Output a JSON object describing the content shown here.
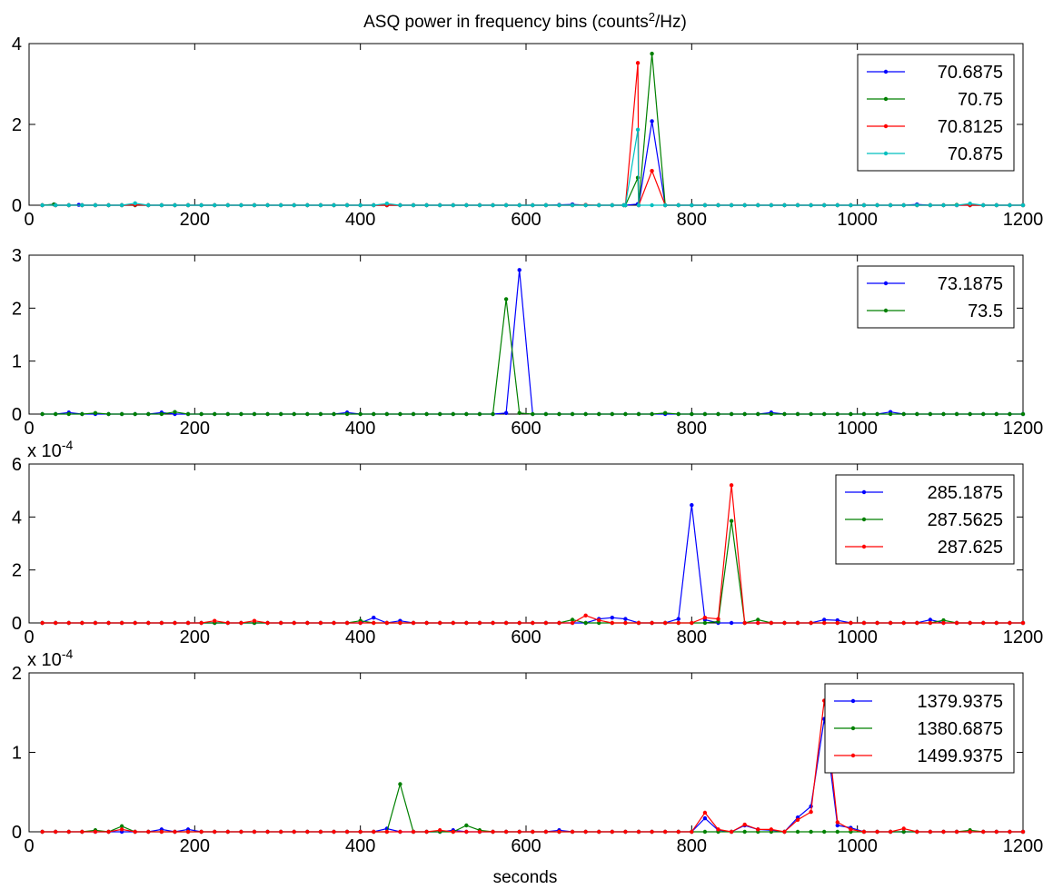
{
  "chart_data": {
    "title": "ASQ power in frequency bins (counts²/Hz)",
    "xlabel": "seconds",
    "panels": [
      {
        "type": "line",
        "xlim": [
          0,
          1200
        ],
        "ylim": [
          0,
          4
        ],
        "xticks": [
          "0",
          "200",
          "400",
          "600",
          "800",
          "1000",
          "1200"
        ],
        "yticks": [
          "0",
          "2",
          "4"
        ],
        "yexponent": "",
        "legend_position": "top-right",
        "series": [
          {
            "name": "70.6875",
            "color": "#0000ff",
            "points": [
              [
                735,
                0.03
              ],
              [
                752,
                2.08
              ],
              [
                768,
                0.0
              ]
            ],
            "baseline_noise": [
              [
                30,
                0.02
              ],
              [
                60,
                0.01
              ],
              [
                640,
                0.01
              ],
              [
                656,
                0.02
              ],
              [
                1072,
                0.02
              ]
            ]
          },
          {
            "name": "70.75",
            "color": "#008000",
            "points": [
              [
                718,
                0.0
              ],
              [
                735,
                0.68
              ],
              [
                752,
                3.75
              ],
              [
                768,
                0.0
              ]
            ],
            "baseline_noise": [
              [
                30,
                0.02
              ],
              [
                1120,
                0.01
              ]
            ]
          },
          {
            "name": "70.8125",
            "color": "#ff0000",
            "points": [
              [
                718,
                0.0
              ],
              [
                735,
                3.52
              ],
              [
                752,
                0.85
              ],
              [
                768,
                0.0
              ]
            ],
            "baseline_noise": [
              [
                128,
                0.01
              ],
              [
                672,
                0.01
              ]
            ]
          },
          {
            "name": "70.875",
            "color": "#00bfbf",
            "points": [
              [
                718,
                0.0
              ],
              [
                735,
                1.87
              ],
              [
                752,
                0.0
              ]
            ],
            "baseline_noise": [
              [
                128,
                0.05
              ],
              [
                432,
                0.04
              ],
              [
                1136,
                0.04
              ]
            ]
          }
        ]
      },
      {
        "type": "line",
        "xlim": [
          0,
          1200
        ],
        "ylim": [
          0,
          3
        ],
        "xticks": [
          "0",
          "200",
          "400",
          "600",
          "800",
          "1000",
          "1200"
        ],
        "yticks": [
          "0",
          "1",
          "2",
          "3"
        ],
        "yexponent": "",
        "legend_position": "top-right",
        "series": [
          {
            "name": "73.1875",
            "color": "#0000ff",
            "points": [
              [
                576,
                0.02
              ],
              [
                592,
                2.72
              ],
              [
                608,
                0.0
              ]
            ],
            "baseline_noise": [
              [
                48,
                0.03
              ],
              [
                160,
                0.03
              ],
              [
                384,
                0.03
              ],
              [
                896,
                0.03
              ],
              [
                1040,
                0.04
              ]
            ]
          },
          {
            "name": "73.5",
            "color": "#008000",
            "points": [
              [
                560,
                0.0
              ],
              [
                576,
                2.17
              ],
              [
                592,
                0.02
              ]
            ],
            "baseline_noise": [
              [
                176,
                0.04
              ],
              [
                80,
                0.02
              ],
              [
                768,
                0.02
              ]
            ]
          }
        ]
      },
      {
        "type": "line",
        "xlim": [
          0,
          1200
        ],
        "ylim": [
          0,
          6
        ],
        "xticks": [
          "0",
          "200",
          "400",
          "600",
          "800",
          "1000",
          "1200"
        ],
        "yticks": [
          "0",
          "2",
          "4",
          "6"
        ],
        "yexponent": "x 10^-4",
        "legend_position": "top-right",
        "series": [
          {
            "name": "285.1875",
            "color": "#0000ff",
            "points": [
              [
                784,
                0.15
              ],
              [
                800,
                4.45
              ],
              [
                816,
                0.12
              ],
              [
                832,
                0.0
              ]
            ],
            "baseline_noise": [
              [
                416,
                0.2
              ],
              [
                448,
                0.08
              ],
              [
                688,
                0.15
              ],
              [
                704,
                0.2
              ],
              [
                720,
                0.15
              ],
              [
                960,
                0.12
              ],
              [
                976,
                0.1
              ],
              [
                1088,
                0.12
              ]
            ]
          },
          {
            "name": "287.5625",
            "color": "#008000",
            "points": [
              [
                832,
                0.05
              ],
              [
                848,
                3.85
              ],
              [
                864,
                0.0
              ]
            ],
            "baseline_noise": [
              [
                400,
                0.08
              ],
              [
                656,
                0.12
              ],
              [
                880,
                0.12
              ],
              [
                1104,
                0.1
              ]
            ]
          },
          {
            "name": "287.625",
            "color": "#ff0000",
            "points": [
              [
                816,
                0.2
              ],
              [
                832,
                0.15
              ],
              [
                848,
                5.2
              ],
              [
                864,
                0.0
              ]
            ],
            "baseline_noise": [
              [
                224,
                0.08
              ],
              [
                272,
                0.08
              ],
              [
                672,
                0.28
              ],
              [
                688,
                0.1
              ]
            ]
          }
        ]
      },
      {
        "type": "line",
        "xlim": [
          0,
          1200
        ],
        "ylim": [
          0,
          2
        ],
        "xticks": [
          "0",
          "200",
          "400",
          "600",
          "800",
          "1000",
          "1200"
        ],
        "yticks": [
          "0",
          "1",
          "2"
        ],
        "yexponent": "x 10^-4",
        "legend_position": "top-right",
        "series": [
          {
            "name": "1379.9375",
            "color": "#0000ff",
            "points": [
              [
                800,
                0.0
              ],
              [
                816,
                0.17
              ],
              [
                832,
                0.02
              ],
              [
                848,
                0.0
              ],
              [
                864,
                0.08
              ],
              [
                880,
                0.03
              ],
              [
                896,
                0.02
              ],
              [
                912,
                0.0
              ],
              [
                928,
                0.18
              ],
              [
                944,
                0.32
              ],
              [
                960,
                1.42
              ],
              [
                976,
                0.08
              ],
              [
                992,
                0.05
              ],
              [
                1008,
                0.0
              ]
            ],
            "baseline_noise": [
              [
                160,
                0.03
              ],
              [
                192,
                0.03
              ],
              [
                432,
                0.04
              ],
              [
                512,
                0.02
              ],
              [
                640,
                0.02
              ]
            ]
          },
          {
            "name": "1380.6875",
            "color": "#008000",
            "points": [
              [
                432,
                0.0
              ],
              [
                448,
                0.6
              ],
              [
                464,
                0.0
              ]
            ],
            "baseline_noise": [
              [
                112,
                0.07
              ],
              [
                80,
                0.02
              ],
              [
                528,
                0.08
              ],
              [
                544,
                0.02
              ],
              [
                1136,
                0.02
              ]
            ]
          },
          {
            "name": "1499.9375",
            "color": "#ff0000",
            "points": [
              [
                800,
                0.0
              ],
              [
                816,
                0.24
              ],
              [
                832,
                0.03
              ],
              [
                848,
                0.0
              ],
              [
                864,
                0.09
              ],
              [
                880,
                0.03
              ],
              [
                896,
                0.03
              ],
              [
                912,
                0.0
              ],
              [
                928,
                0.15
              ],
              [
                944,
                0.25
              ],
              [
                960,
                1.65
              ],
              [
                976,
                0.12
              ],
              [
                992,
                0.03
              ],
              [
                1008,
                0.0
              ]
            ],
            "baseline_noise": [
              [
                112,
                0.03
              ],
              [
                496,
                0.02
              ],
              [
                1056,
                0.04
              ]
            ]
          }
        ]
      }
    ]
  }
}
